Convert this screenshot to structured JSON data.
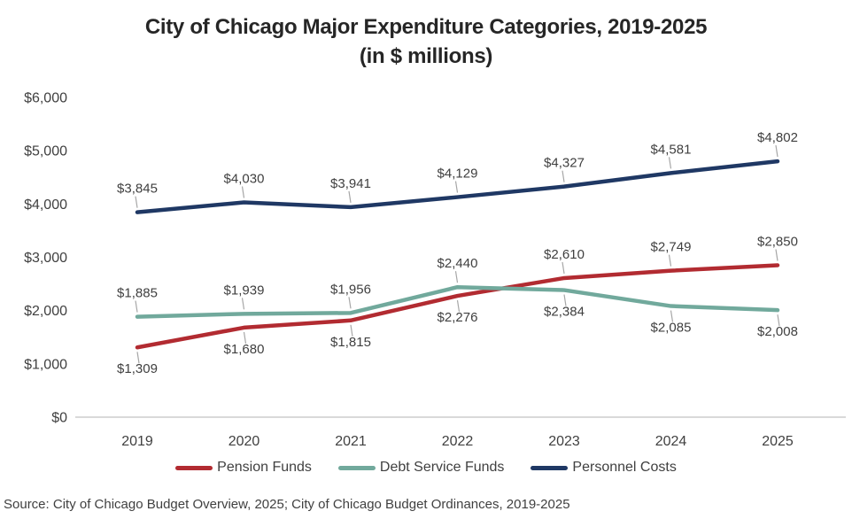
{
  "title": {
    "line1": "City of Chicago Major Expenditure Categories, 2019-2025",
    "line2": "(in $ millions)"
  },
  "source": "Source: City of Chicago Budget Overview, 2025; City of Chicago Budget Ordinances, 2019-2025",
  "colors": {
    "title_text": "#262626",
    "tick_text": "#404040",
    "data_label_text": "#3f3f3f",
    "axis_line": "#d9d9d9",
    "leader_line": "#a6a6a6",
    "pension_red": "#b22b31",
    "debt_teal": "#71a99c",
    "personnel_navy": "#1f3864"
  },
  "chart_data": {
    "type": "line",
    "title": "City of Chicago Major Expenditure Categories, 2019-2025 (in $ millions)",
    "categories": [
      "2019",
      "2020",
      "2021",
      "2022",
      "2023",
      "2024",
      "2025"
    ],
    "series": [
      {
        "name": "Pension Funds",
        "color": "#b22b31",
        "values": [
          1309,
          1680,
          1815,
          2276,
          2610,
          2749,
          2850
        ],
        "label_side": [
          "below",
          "below",
          "below",
          "below",
          "above",
          "above",
          "above"
        ]
      },
      {
        "name": "Debt Service Funds",
        "color": "#71a99c",
        "values": [
          1885,
          1939,
          1956,
          2440,
          2384,
          2085,
          2008
        ],
        "label_side": [
          "above",
          "above",
          "above",
          "above",
          "below",
          "below",
          "below"
        ]
      },
      {
        "name": "Personnel Costs",
        "color": "#1f3864",
        "values": [
          3845,
          4030,
          3941,
          4129,
          4327,
          4581,
          4802
        ],
        "label_side": [
          "above",
          "above",
          "above",
          "above",
          "above",
          "above",
          "above"
        ]
      }
    ],
    "ylim": [
      0,
      6000
    ],
    "ytick_step": 1000,
    "ytick_labels": [
      "$0",
      "$1,000",
      "$2,000",
      "$3,000",
      "$4,000",
      "$5,000",
      "$6,000"
    ],
    "value_prefix": "$",
    "grid": false,
    "legend_position": "bottom"
  }
}
